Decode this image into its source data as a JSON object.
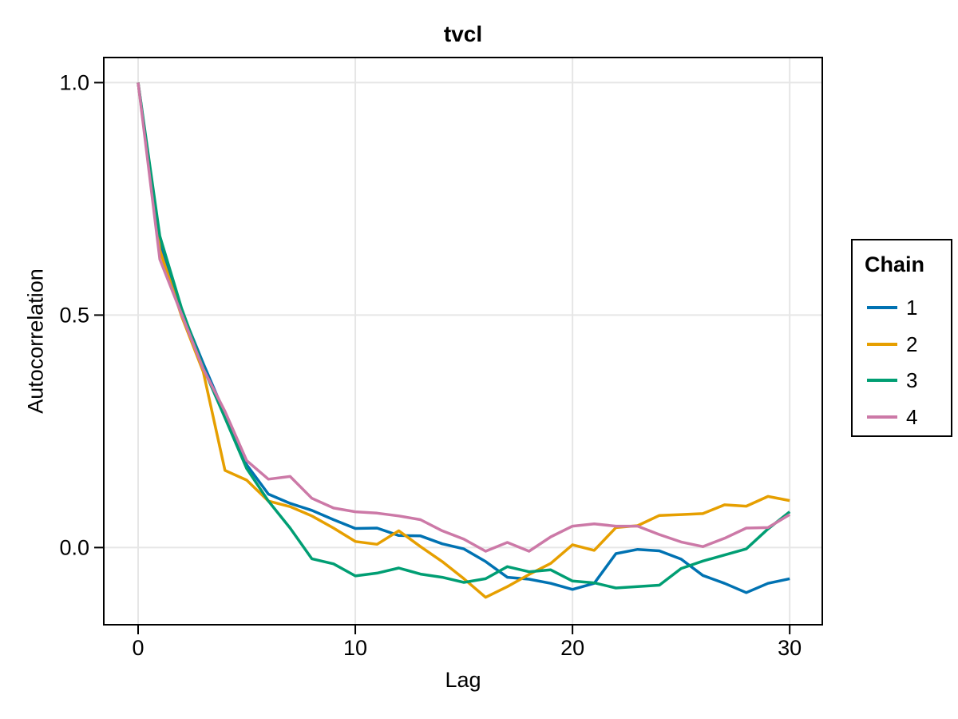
{
  "figure": {
    "title": "tvcl",
    "background": "#ffffff"
  },
  "chart_data": {
    "type": "line",
    "title": "tvcl",
    "xlabel": "Lag",
    "ylabel": "Autocorrelation",
    "x": [
      0,
      1,
      2,
      3,
      4,
      5,
      6,
      7,
      8,
      9,
      10,
      11,
      12,
      13,
      14,
      15,
      16,
      17,
      18,
      19,
      20,
      21,
      22,
      23,
      24,
      25,
      26,
      27,
      28,
      29,
      30
    ],
    "series": [
      {
        "name": "1",
        "color": "#0072B2",
        "values": [
          1.0,
          0.655,
          0.51,
          0.396,
          0.287,
          0.178,
          0.115,
          0.095,
          0.08,
          0.06,
          0.041,
          0.042,
          0.026,
          0.025,
          0.008,
          -0.003,
          -0.03,
          -0.064,
          -0.068,
          -0.077,
          -0.09,
          -0.077,
          -0.013,
          -0.004,
          -0.007,
          -0.025,
          -0.06,
          -0.077,
          -0.097,
          -0.077,
          -0.067
        ]
      },
      {
        "name": "2",
        "color": "#E69F00",
        "values": [
          1.0,
          0.64,
          0.498,
          0.378,
          0.166,
          0.145,
          0.1,
          0.088,
          0.068,
          0.042,
          0.013,
          0.007,
          0.036,
          0.002,
          -0.03,
          -0.067,
          -0.107,
          -0.084,
          -0.058,
          -0.034,
          0.006,
          -0.006,
          0.043,
          0.047,
          0.069,
          0.071,
          0.073,
          0.092,
          0.089,
          0.11,
          0.101
        ]
      },
      {
        "name": "3",
        "color": "#009E73",
        "values": [
          1.0,
          0.67,
          0.515,
          0.387,
          0.279,
          0.17,
          0.1,
          0.042,
          -0.024,
          -0.035,
          -0.061,
          -0.055,
          -0.044,
          -0.057,
          -0.064,
          -0.075,
          -0.067,
          -0.041,
          -0.052,
          -0.048,
          -0.072,
          -0.076,
          -0.087,
          -0.084,
          -0.081,
          -0.045,
          -0.029,
          -0.016,
          -0.003,
          0.04,
          0.077
        ]
      },
      {
        "name": "4",
        "color": "#CC79A7",
        "values": [
          1.0,
          0.62,
          0.502,
          0.384,
          0.293,
          0.187,
          0.147,
          0.153,
          0.106,
          0.085,
          0.077,
          0.074,
          0.068,
          0.06,
          0.036,
          0.018,
          -0.008,
          0.011,
          -0.008,
          0.023,
          0.046,
          0.051,
          0.046,
          0.046,
          0.028,
          0.012,
          0.002,
          0.02,
          0.042,
          0.043,
          0.071
        ]
      }
    ],
    "xticks": {
      "values": [
        0,
        10,
        20,
        30
      ],
      "labels": [
        "0",
        "10",
        "20",
        "30"
      ]
    },
    "yticks": {
      "values": [
        0.0,
        0.5,
        1.0
      ],
      "labels": [
        "0.0",
        "0.5",
        "1.0"
      ]
    },
    "xlim": [
      -1.58,
      31.5
    ],
    "ylim": [
      -0.166,
      1.054
    ],
    "grid": true,
    "legend": {
      "title": "Chain",
      "position": "right",
      "labels": [
        "1",
        "2",
        "3",
        "4"
      ]
    },
    "colors": {
      "grid": "#e6e6e6",
      "frame": "#000000",
      "text": "#000000"
    }
  }
}
